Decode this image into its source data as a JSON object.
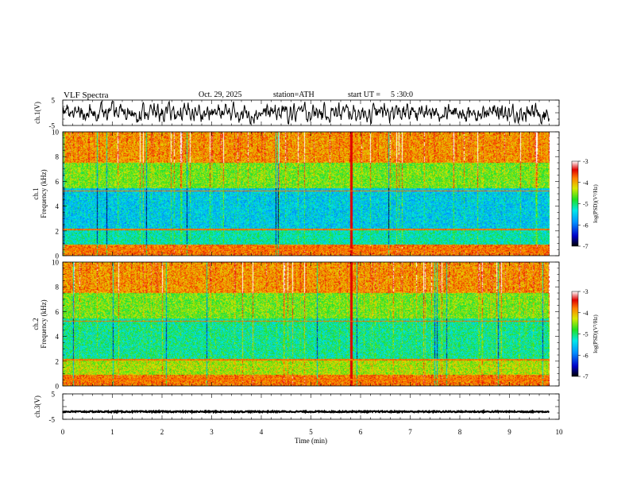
{
  "header": {
    "title": "VLF Spectra",
    "date": "Oct. 29, 2025",
    "station": "station=ATH",
    "start_label": "start UT =",
    "start_time": "5 :30:0"
  },
  "chart_data": [
    {
      "type": "line",
      "id": "ch1",
      "ylabel": "ch.1(V)",
      "ylim": [
        -5,
        5
      ],
      "ytick_labels": [
        "5",
        "-5"
      ],
      "xlim": [
        0,
        10
      ],
      "description_series": "noisy waveform spanning roughly -4..4 V over 0-9.8 min"
    },
    {
      "type": "heatmap",
      "id": "ch1_spec",
      "ylabel_top": "ch.1",
      "ylabel": "Frequency (kHz)",
      "ylim": [
        0,
        10
      ],
      "ytick_labels": [
        "0",
        "2",
        "4",
        "6",
        "8",
        "10"
      ],
      "xlim": [
        0,
        10
      ],
      "colorbar": {
        "label": "log(PSD)(V²/Hz)",
        "range": [
          -7,
          -3
        ],
        "tick_labels": [
          "-3",
          "-4",
          "-5",
          "-6",
          "-7"
        ]
      }
    },
    {
      "type": "heatmap",
      "id": "ch2_spec",
      "ylabel_top": "ch.2",
      "ylabel": "Frequency (kHz)",
      "ylim": [
        0,
        10
      ],
      "ytick_labels": [
        "0",
        "2",
        "4",
        "6",
        "8",
        "10"
      ],
      "xlim": [
        0,
        10
      ],
      "colorbar": {
        "label": "log(PSD)(V²/Hz)",
        "range": [
          -7,
          -3
        ],
        "tick_labels": [
          "-3",
          "-4",
          "-5",
          "-6",
          "-7"
        ]
      }
    },
    {
      "type": "line",
      "id": "ch3",
      "ylabel": "ch.3(V)",
      "ylim": [
        -5,
        5
      ],
      "ytick_labels": [
        "5",
        "-5"
      ],
      "xlim": [
        0,
        10
      ],
      "description_series": "nearly constant at about -2 V with small noise"
    }
  ],
  "x_axis": {
    "label": "Time (min)",
    "tick_labels": [
      "0",
      "1",
      "2",
      "3",
      "4",
      "5",
      "6",
      "7",
      "8",
      "9",
      "10"
    ]
  }
}
